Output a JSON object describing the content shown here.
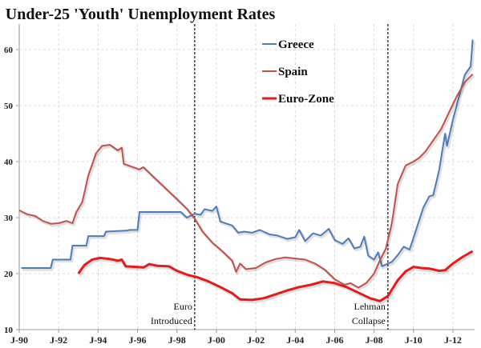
{
  "chart_data": {
    "type": "line",
    "title": "Under-25 'Youth' Unemployment Rates",
    "xlabel": "",
    "ylabel": "",
    "xlim": [
      1990,
      2013.1
    ],
    "ylim": [
      10,
      65
    ],
    "grid": true,
    "legend_position": "top-center",
    "x_tick_labels": [
      {
        "label": "J-90",
        "x": 1990
      },
      {
        "label": "J-92",
        "x": 1992
      },
      {
        "label": "J-94",
        "x": 1994
      },
      {
        "label": "J-96",
        "x": 1996
      },
      {
        "label": "J-98",
        "x": 1998
      },
      {
        "label": "J-00",
        "x": 2000
      },
      {
        "label": "J-02",
        "x": 2002
      },
      {
        "label": "J-04",
        "x": 2004
      },
      {
        "label": "J-06",
        "x": 2006
      },
      {
        "label": "J-08",
        "x": 2008
      },
      {
        "label": "J-10",
        "x": 2010
      },
      {
        "label": "J-12",
        "x": 2012
      }
    ],
    "y_tick_labels": [
      "10",
      "20",
      "30",
      "40",
      "50",
      "60"
    ],
    "y_ticks": [
      10,
      20,
      30,
      40,
      50,
      60
    ],
    "series": [
      {
        "name": "Greece",
        "color": "#4f7bb8",
        "points": [
          [
            1990.1,
            21
          ],
          [
            1991.6,
            21
          ],
          [
            1991.7,
            22.5
          ],
          [
            1992.6,
            22.5
          ],
          [
            1992.7,
            25
          ],
          [
            1993.4,
            25
          ],
          [
            1993.5,
            26.7
          ],
          [
            1994.3,
            26.7
          ],
          [
            1994.4,
            27.5
          ],
          [
            1995.5,
            27.7
          ],
          [
            1995.6,
            27.8
          ],
          [
            1996.0,
            27.8
          ],
          [
            1996.1,
            31
          ],
          [
            1997.5,
            31
          ],
          [
            1998.2,
            31
          ],
          [
            1998.5,
            30
          ],
          [
            1998.9,
            30.7
          ],
          [
            1999.2,
            30.5
          ],
          [
            1999.4,
            31.5
          ],
          [
            1999.8,
            31.2
          ],
          [
            2000.0,
            32
          ],
          [
            2000.2,
            29.3
          ],
          [
            2000.8,
            28.6
          ],
          [
            2001.1,
            27.3
          ],
          [
            2001.4,
            27.5
          ],
          [
            2001.8,
            27.3
          ],
          [
            2002.2,
            27.8
          ],
          [
            2002.7,
            27.0
          ],
          [
            2003.1,
            26.8
          ],
          [
            2003.6,
            26.2
          ],
          [
            2004.0,
            26.5
          ],
          [
            2004.2,
            27.8
          ],
          [
            2004.5,
            25.8
          ],
          [
            2004.9,
            27.2
          ],
          [
            2005.3,
            26.8
          ],
          [
            2005.7,
            28.0
          ],
          [
            2006.0,
            26.0
          ],
          [
            2006.4,
            25.3
          ],
          [
            2006.7,
            26.3
          ],
          [
            2007.0,
            24.5
          ],
          [
            2007.3,
            24.8
          ],
          [
            2007.5,
            26.6
          ],
          [
            2007.7,
            23.2
          ],
          [
            2008.0,
            22.5
          ],
          [
            2008.2,
            23.8
          ],
          [
            2008.4,
            21.3
          ],
          [
            2008.9,
            22.1
          ],
          [
            2009.2,
            23.3
          ],
          [
            2009.5,
            24.8
          ],
          [
            2009.8,
            24.3
          ],
          [
            2010.1,
            27.5
          ],
          [
            2010.5,
            31.8
          ],
          [
            2010.8,
            33.8
          ],
          [
            2011.0,
            34.0
          ],
          [
            2011.3,
            38.5
          ],
          [
            2011.6,
            45.0
          ],
          [
            2011.7,
            42.8
          ],
          [
            2012.0,
            47.5
          ],
          [
            2012.3,
            51.5
          ],
          [
            2012.6,
            55.5
          ],
          [
            2012.9,
            57.0
          ],
          [
            2013.0,
            61.8
          ]
        ]
      },
      {
        "name": "Spain",
        "color": "#c0504d",
        "points": [
          [
            1990.0,
            31.3
          ],
          [
            1990.4,
            30.6
          ],
          [
            1990.8,
            30.3
          ],
          [
            1991.2,
            29.4
          ],
          [
            1991.6,
            28.9
          ],
          [
            1992.0,
            29.0
          ],
          [
            1992.4,
            29.4
          ],
          [
            1992.7,
            29.0
          ],
          [
            1992.9,
            31.0
          ],
          [
            1993.2,
            32.8
          ],
          [
            1993.5,
            37.5
          ],
          [
            1993.9,
            41.5
          ],
          [
            1994.2,
            42.8
          ],
          [
            1994.6,
            43.0
          ],
          [
            1995.0,
            42.0
          ],
          [
            1995.2,
            42.5
          ],
          [
            1995.3,
            39.6
          ],
          [
            1995.7,
            39.1
          ],
          [
            1996.1,
            38.6
          ],
          [
            1996.3,
            39.0
          ],
          [
            1996.8,
            37.3
          ],
          [
            1997.4,
            35.3
          ],
          [
            1998.0,
            33.3
          ],
          [
            1998.5,
            31.6
          ],
          [
            1998.9,
            29.8
          ],
          [
            1999.3,
            27.5
          ],
          [
            1999.8,
            25.5
          ],
          [
            2000.3,
            24.0
          ],
          [
            2000.8,
            22.3
          ],
          [
            2001.0,
            20.3
          ],
          [
            2001.2,
            21.8
          ],
          [
            2001.5,
            20.8
          ],
          [
            2002.0,
            21.0
          ],
          [
            2002.5,
            22.0
          ],
          [
            2003.0,
            22.6
          ],
          [
            2003.5,
            22.9
          ],
          [
            2004.0,
            22.7
          ],
          [
            2004.5,
            22.5
          ],
          [
            2005.0,
            21.8
          ],
          [
            2005.5,
            20.7
          ],
          [
            2006.0,
            19.0
          ],
          [
            2006.5,
            18.0
          ],
          [
            2006.8,
            18.3
          ],
          [
            2007.2,
            17.5
          ],
          [
            2007.6,
            18.3
          ],
          [
            2008.0,
            20.0
          ],
          [
            2008.3,
            22.4
          ],
          [
            2008.6,
            24.5
          ],
          [
            2008.9,
            29.0
          ],
          [
            2009.2,
            36.0
          ],
          [
            2009.6,
            39.3
          ],
          [
            2010.0,
            40.0
          ],
          [
            2010.3,
            40.7
          ],
          [
            2010.6,
            41.8
          ],
          [
            2011.0,
            43.8
          ],
          [
            2011.4,
            45.8
          ],
          [
            2011.8,
            48.8
          ],
          [
            2012.2,
            51.7
          ],
          [
            2012.6,
            54.2
          ],
          [
            2013.0,
            55.6
          ]
        ]
      },
      {
        "name": "Euro-Zone",
        "color": "#e41b1b",
        "points": [
          [
            1993.0,
            20.0
          ],
          [
            1993.3,
            21.5
          ],
          [
            1993.7,
            22.5
          ],
          [
            1994.1,
            22.8
          ],
          [
            1994.6,
            22.6
          ],
          [
            1995.0,
            22.3
          ],
          [
            1995.2,
            22.5
          ],
          [
            1995.4,
            21.3
          ],
          [
            1995.9,
            21.2
          ],
          [
            1996.3,
            21.1
          ],
          [
            1996.6,
            21.7
          ],
          [
            1997.0,
            21.4
          ],
          [
            1997.6,
            21.3
          ],
          [
            1998.0,
            20.5
          ],
          [
            1998.6,
            19.7
          ],
          [
            1999.0,
            19.4
          ],
          [
            1999.6,
            18.6
          ],
          [
            2000.2,
            17.6
          ],
          [
            2000.8,
            16.5
          ],
          [
            2001.2,
            15.4
          ],
          [
            2001.8,
            15.3
          ],
          [
            2002.4,
            15.6
          ],
          [
            2003.0,
            16.3
          ],
          [
            2003.6,
            17.0
          ],
          [
            2004.2,
            17.6
          ],
          [
            2004.8,
            18.0
          ],
          [
            2005.4,
            18.6
          ],
          [
            2006.0,
            18.3
          ],
          [
            2006.6,
            17.6
          ],
          [
            2007.2,
            16.6
          ],
          [
            2007.8,
            15.6
          ],
          [
            2008.3,
            15.1
          ],
          [
            2008.7,
            16.0
          ],
          [
            2009.2,
            18.8
          ],
          [
            2009.6,
            20.4
          ],
          [
            2010.0,
            21.2
          ],
          [
            2010.4,
            21.0
          ],
          [
            2010.8,
            20.9
          ],
          [
            2011.3,
            20.5
          ],
          [
            2011.6,
            20.6
          ],
          [
            2012.0,
            21.8
          ],
          [
            2012.5,
            23.0
          ],
          [
            2013.0,
            24.0
          ]
        ]
      }
    ],
    "annotations": [
      {
        "label_lines": [
          "Euro",
          "Introduced"
        ],
        "x": 1998.9
      },
      {
        "label_lines": [
          "Lehman",
          "Collapse"
        ],
        "x": 2008.7
      }
    ]
  }
}
